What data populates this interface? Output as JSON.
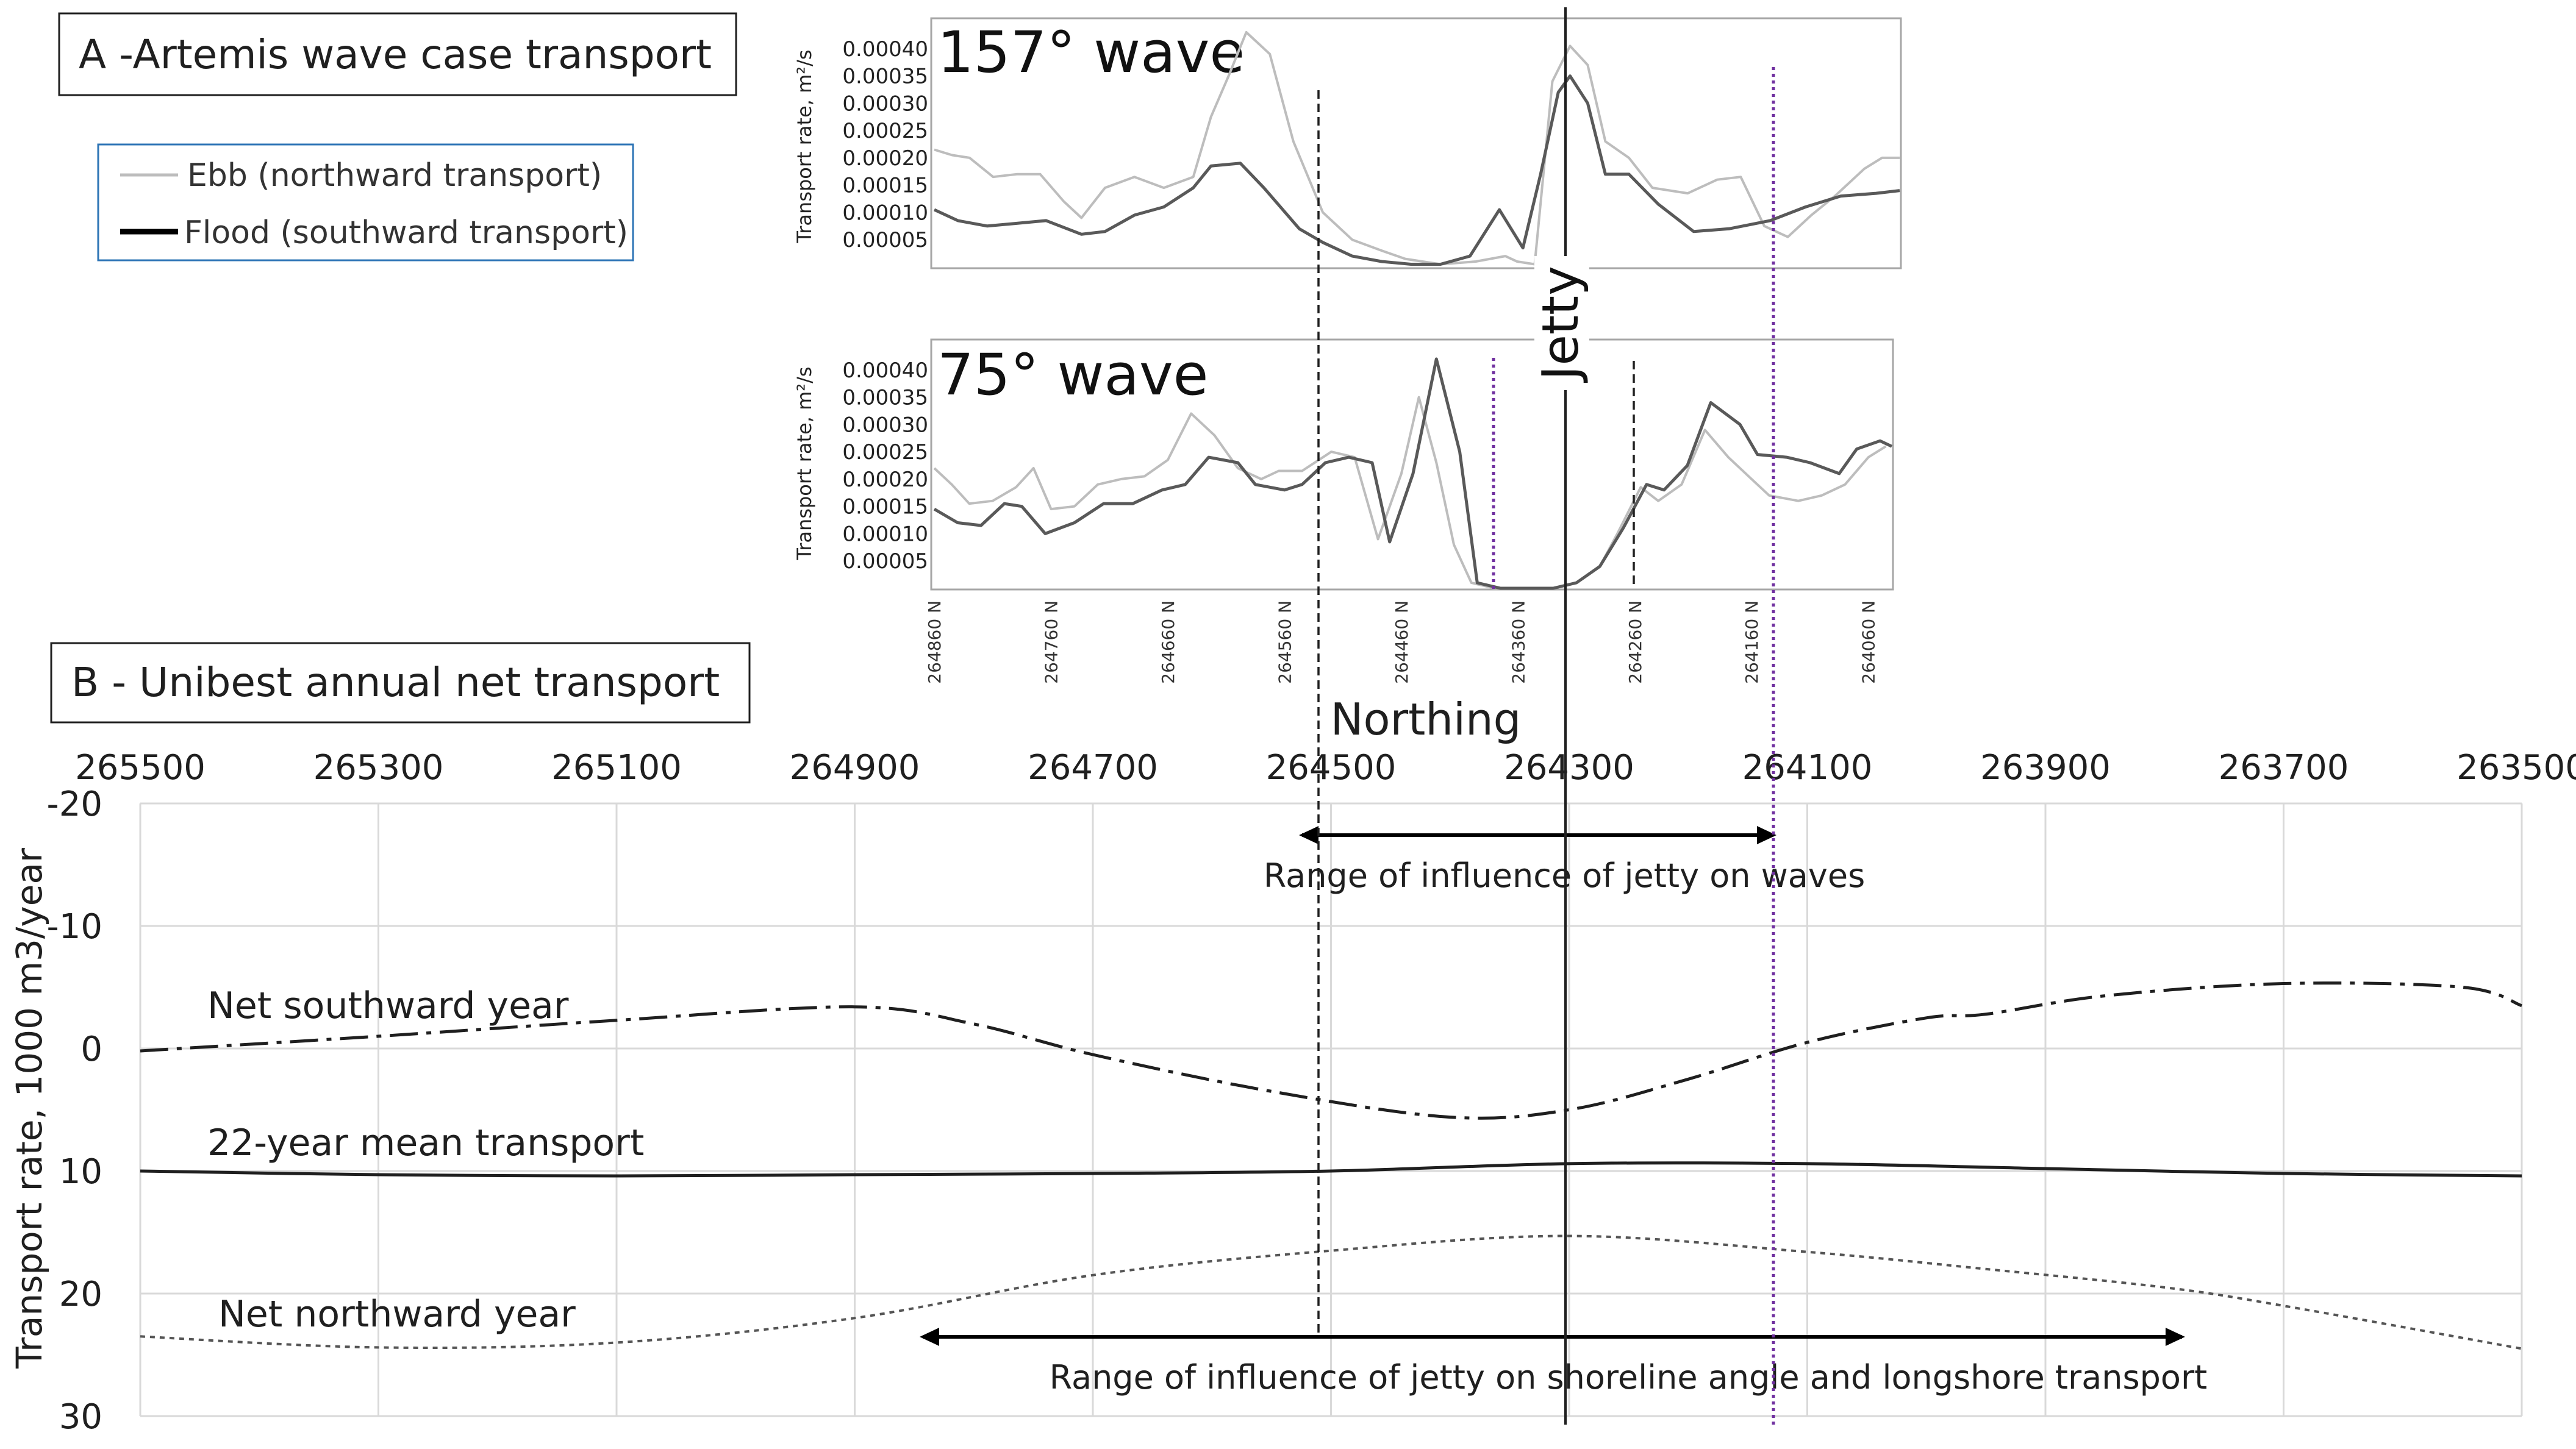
{
  "colors": {
    "ebb": "#bdbdbd",
    "flood": "#595959",
    "grid": "#d9d9d9",
    "frame": "#a6a6a6",
    "line": "#1f1f1f",
    "purple": "#7030a0",
    "legend_border": "#2e75b6"
  },
  "panel_a": {
    "title": "A -Artemis wave case transport",
    "legend": {
      "ebb": "Ebb (northward transport)",
      "flood": "Flood (southward transport)"
    },
    "ylabel": "Transport rate, m²/s",
    "ytick_labels": [
      "0.00040",
      "0.00035",
      "0.00030",
      "0.00025",
      "0.00020",
      "0.00015",
      "0.00010",
      "0.00005"
    ],
    "ytick_values": [
      0.0004,
      0.00035,
      0.0003,
      0.00025,
      0.0002,
      0.00015,
      0.0001,
      5e-05
    ],
    "ylim": [
      0,
      0.00045
    ],
    "xlim": [
      264860,
      264040
    ],
    "xtick_labels": [
      "264860 N",
      "264760 N",
      "264660 N",
      "264560 N",
      "264460 N",
      "264360 N",
      "264260 N",
      "264160 N",
      "264060 N"
    ],
    "xtick_values": [
      264860,
      264760,
      264660,
      264560,
      264460,
      264360,
      264260,
      264160,
      264060
    ],
    "jetty_label": "Jetty",
    "xlabel": "Northing"
  },
  "chart_data": [
    {
      "type": "line",
      "title": "157° wave",
      "xlabel": "Northing",
      "ylabel": "Transport rate, m²/s",
      "ylim": [
        0,
        0.00045
      ],
      "xlim": [
        264860,
        264040
      ],
      "series": [
        {
          "name": "Ebb (northward transport)",
          "points": [
            [
              264860,
              0.000215
            ],
            [
              264845,
              0.000205
            ],
            [
              264830,
              0.0002
            ],
            [
              264810,
              0.000165
            ],
            [
              264790,
              0.00017
            ],
            [
              264770,
              0.00017
            ],
            [
              264750,
              0.00012
            ],
            [
              264735,
              9e-05
            ],
            [
              264715,
              0.000145
            ],
            [
              264690,
              0.000165
            ],
            [
              264665,
              0.000145
            ],
            [
              264640,
              0.000165
            ],
            [
              264625,
              0.000275
            ],
            [
              264610,
              0.00035
            ],
            [
              264595,
              0.00043
            ],
            [
              264575,
              0.00039
            ],
            [
              264555,
              0.00023
            ],
            [
              264530,
              0.0001
            ],
            [
              264505,
              5e-05
            ],
            [
              264480,
              3e-05
            ],
            [
              264460,
              1.5e-05
            ],
            [
              264430,
              5e-06
            ],
            [
              264400,
              1e-05
            ],
            [
              264375,
              2e-05
            ],
            [
              264365,
              1e-05
            ],
            [
              264350,
              5e-06
            ],
            [
              264335,
              0.00034
            ],
            [
              264320,
              0.000405
            ],
            [
              264305,
              0.00037
            ],
            [
              264290,
              0.00023
            ],
            [
              264270,
              0.0002
            ],
            [
              264250,
              0.000145
            ],
            [
              264220,
              0.000135
            ],
            [
              264195,
              0.00016
            ],
            [
              264175,
              0.000165
            ],
            [
              264155,
              7.5e-05
            ],
            [
              264135,
              5.5e-05
            ],
            [
              264115,
              9.5e-05
            ],
            [
              264095,
              0.00013
            ],
            [
              264070,
              0.00018
            ],
            [
              264055,
              0.0002
            ],
            [
              264040,
              0.0002
            ]
          ]
        },
        {
          "name": "Flood (southward transport)",
          "points": [
            [
              264860,
              0.000105
            ],
            [
              264840,
              8.5e-05
            ],
            [
              264815,
              7.5e-05
            ],
            [
              264790,
              8e-05
            ],
            [
              264765,
              8.5e-05
            ],
            [
              264735,
              6e-05
            ],
            [
              264715,
              6.5e-05
            ],
            [
              264690,
              9.5e-05
            ],
            [
              264665,
              0.00011
            ],
            [
              264640,
              0.000145
            ],
            [
              264625,
              0.000185
            ],
            [
              264600,
              0.00019
            ],
            [
              264580,
              0.000145
            ],
            [
              264550,
              7e-05
            ],
            [
              264530,
              4.5e-05
            ],
            [
              264505,
              2e-05
            ],
            [
              264480,
              1e-05
            ],
            [
              264455,
              5e-06
            ],
            [
              264430,
              5e-06
            ],
            [
              264405,
              2e-05
            ],
            [
              264380,
              0.000105
            ],
            [
              264360,
              3.5e-05
            ],
            [
              264345,
              0.00017
            ],
            [
              264330,
              0.00032
            ],
            [
              264320,
              0.00035
            ],
            [
              264305,
              0.0003
            ],
            [
              264290,
              0.00017
            ],
            [
              264270,
              0.00017
            ],
            [
              264245,
              0.000115
            ],
            [
              264215,
              6.5e-05
            ],
            [
              264185,
              7e-05
            ],
            [
              264150,
              8.5e-05
            ],
            [
              264120,
              0.00011
            ],
            [
              264090,
              0.00013
            ],
            [
              264060,
              0.000135
            ],
            [
              264040,
              0.00014
            ]
          ]
        }
      ]
    },
    {
      "type": "line",
      "title": "75° wave",
      "xlabel": "Northing",
      "ylabel": "Transport rate, m²/s",
      "ylim": [
        0,
        0.00045
      ],
      "xlim": [
        264860,
        264040
      ],
      "series": [
        {
          "name": "Ebb (northward transport)",
          "points": [
            [
              264860,
              0.00022
            ],
            [
              264845,
              0.00019
            ],
            [
              264830,
              0.000155
            ],
            [
              264810,
              0.00016
            ],
            [
              264790,
              0.000185
            ],
            [
              264775,
              0.00022
            ],
            [
              264760,
              0.000145
            ],
            [
              264740,
              0.00015
            ],
            [
              264720,
              0.00019
            ],
            [
              264700,
              0.0002
            ],
            [
              264680,
              0.000205
            ],
            [
              264660,
              0.000235
            ],
            [
              264640,
              0.00032
            ],
            [
              264620,
              0.00028
            ],
            [
              264600,
              0.00022
            ],
            [
              264580,
              0.0002
            ],
            [
              264565,
              0.000215
            ],
            [
              264545,
              0.000215
            ],
            [
              264520,
              0.00025
            ],
            [
              264500,
              0.00024
            ],
            [
              264480,
              9e-05
            ],
            [
              264460,
              0.00021
            ],
            [
              264445,
              0.00035
            ],
            [
              264430,
              0.00023
            ],
            [
              264415,
              8e-05
            ],
            [
              264400,
              1e-05
            ],
            [
              264380,
              0.0
            ],
            [
              264350,
              0.0
            ],
            [
              264330,
              0.0
            ],
            [
              264310,
              1e-05
            ],
            [
              264290,
              4e-05
            ],
            [
              264275,
              0.0001
            ],
            [
              264255,
              0.000185
            ],
            [
              264240,
              0.00016
            ],
            [
              264220,
              0.00019
            ],
            [
              264200,
              0.00029
            ],
            [
              264180,
              0.00024
            ],
            [
              264160,
              0.0002
            ],
            [
              264145,
              0.00017
            ],
            [
              264120,
              0.00016
            ],
            [
              264100,
              0.00017
            ],
            [
              264080,
              0.00019
            ],
            [
              264060,
              0.00024
            ],
            [
              264045,
              0.00026
            ]
          ]
        },
        {
          "name": "Flood (southward transport)",
          "points": [
            [
              264860,
              0.000145
            ],
            [
              264840,
              0.00012
            ],
            [
              264820,
              0.000115
            ],
            [
              264800,
              0.000155
            ],
            [
              264785,
              0.00015
            ],
            [
              264765,
              0.0001
            ],
            [
              264740,
              0.00012
            ],
            [
              264715,
              0.000155
            ],
            [
              264690,
              0.000155
            ],
            [
              264665,
              0.00018
            ],
            [
              264645,
              0.00019
            ],
            [
              264625,
              0.00024
            ],
            [
              264600,
              0.00023
            ],
            [
              264585,
              0.00019
            ],
            [
              264560,
              0.00018
            ],
            [
              264545,
              0.00019
            ],
            [
              264525,
              0.00023
            ],
            [
              264505,
              0.00024
            ],
            [
              264485,
              0.00023
            ],
            [
              264470,
              8.5e-05
            ],
            [
              264450,
              0.00021
            ],
            [
              264430,
              0.00042
            ],
            [
              264410,
              0.00025
            ],
            [
              264395,
              1e-05
            ],
            [
              264375,
              0.0
            ],
            [
              264350,
              0.0
            ],
            [
              264330,
              0.0
            ],
            [
              264310,
              1e-05
            ],
            [
              264290,
              4e-05
            ],
            [
              264270,
              0.00011
            ],
            [
              264250,
              0.00019
            ],
            [
              264235,
              0.00018
            ],
            [
              264215,
              0.000225
            ],
            [
              264195,
              0.00034
            ],
            [
              264170,
              0.0003
            ],
            [
              264155,
              0.000245
            ],
            [
              264130,
              0.00024
            ],
            [
              264110,
              0.00023
            ],
            [
              264085,
              0.00021
            ],
            [
              264070,
              0.000255
            ],
            [
              264050,
              0.00027
            ],
            [
              264040,
              0.00026
            ]
          ]
        }
      ]
    },
    {
      "type": "line",
      "title": "B - Unibest annual net transport",
      "xlabel": "",
      "ylabel": "Transport  rate, 1000 m3/year",
      "xlim": [
        265500,
        263500
      ],
      "ylim": [
        -20,
        30
      ],
      "xtick_labels": [
        "265500",
        "265300",
        "265100",
        "264900",
        "264700",
        "264500",
        "264300",
        "264100",
        "263900",
        "263700",
        "263500"
      ],
      "xtick_values": [
        265500,
        265300,
        265100,
        264900,
        264700,
        264500,
        264300,
        264100,
        263900,
        263700,
        263500
      ],
      "ytick_labels": [
        "-20",
        "-10",
        "0",
        "10",
        "20",
        "30"
      ],
      "ytick_values": [
        -20,
        -10,
        0,
        10,
        20,
        30
      ],
      "series": [
        {
          "name": "Net southward year",
          "style": "dash-dot",
          "points": [
            [
              265500,
              0.2
            ],
            [
              265300,
              -1
            ],
            [
              265100,
              -2.3
            ],
            [
              264900,
              -3.4
            ],
            [
              264800,
              -2
            ],
            [
              264700,
              0.5
            ],
            [
              264550,
              3.5
            ],
            [
              264400,
              5.6
            ],
            [
              264300,
              5
            ],
            [
              264200,
              2.5
            ],
            [
              264100,
              -0.5
            ],
            [
              264000,
              -2.5
            ],
            [
              263950,
              -2.8
            ],
            [
              263850,
              -4.3
            ],
            [
              263700,
              -5.3
            ],
            [
              263550,
              -5
            ],
            [
              263500,
              -3.5
            ]
          ]
        },
        {
          "name": "22-year mean transport",
          "style": "solid",
          "points": [
            [
              265500,
              10
            ],
            [
              265300,
              10.3
            ],
            [
              265100,
              10.4
            ],
            [
              264900,
              10.3
            ],
            [
              264700,
              10.2
            ],
            [
              264500,
              10
            ],
            [
              264300,
              9.4
            ],
            [
              264100,
              9.4
            ],
            [
              263900,
              9.8
            ],
            [
              263700,
              10.2
            ],
            [
              263500,
              10.4
            ]
          ]
        },
        {
          "name": "Net northward year",
          "style": "dotted",
          "points": [
            [
              265500,
              23.5
            ],
            [
              265300,
              24.4
            ],
            [
              265100,
              24
            ],
            [
              264900,
              22
            ],
            [
              264700,
              18.5
            ],
            [
              264500,
              16.5
            ],
            [
              264300,
              15.3
            ],
            [
              264100,
              16.6
            ],
            [
              263950,
              18
            ],
            [
              263800,
              19.5
            ],
            [
              263700,
              21
            ],
            [
              263500,
              24.5
            ]
          ]
        }
      ],
      "annotations": {
        "waves_range_label": "Range of influence of jetty on waves",
        "shoreline_range_label": "Range of influence of jetty on shoreline angle and longshore transport"
      }
    }
  ]
}
